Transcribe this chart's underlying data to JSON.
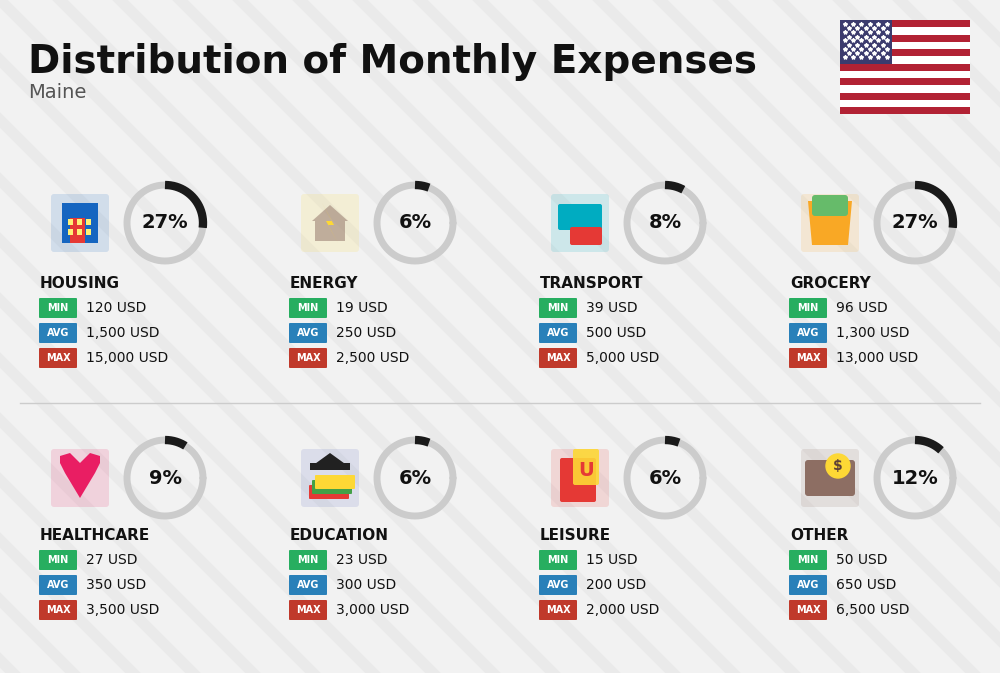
{
  "title": "Distribution of Monthly Expenses",
  "subtitle": "Maine",
  "background_color": "#f2f2f2",
  "categories": [
    {
      "name": "HOUSING",
      "percent": 27,
      "min_val": "120 USD",
      "avg_val": "1,500 USD",
      "max_val": "15,000 USD",
      "row": 0,
      "col": 0
    },
    {
      "name": "ENERGY",
      "percent": 6,
      "min_val": "19 USD",
      "avg_val": "250 USD",
      "max_val": "2,500 USD",
      "row": 0,
      "col": 1
    },
    {
      "name": "TRANSPORT",
      "percent": 8,
      "min_val": "39 USD",
      "avg_val": "500 USD",
      "max_val": "5,000 USD",
      "row": 0,
      "col": 2
    },
    {
      "name": "GROCERY",
      "percent": 27,
      "min_val": "96 USD",
      "avg_val": "1,300 USD",
      "max_val": "13,000 USD",
      "row": 0,
      "col": 3
    },
    {
      "name": "HEALTHCARE",
      "percent": 9,
      "min_val": "27 USD",
      "avg_val": "350 USD",
      "max_val": "3,500 USD",
      "row": 1,
      "col": 0
    },
    {
      "name": "EDUCATION",
      "percent": 6,
      "min_val": "23 USD",
      "avg_val": "300 USD",
      "max_val": "3,000 USD",
      "row": 1,
      "col": 1
    },
    {
      "name": "LEISURE",
      "percent": 6,
      "min_val": "15 USD",
      "avg_val": "200 USD",
      "max_val": "2,000 USD",
      "row": 1,
      "col": 2
    },
    {
      "name": "OTHER",
      "percent": 12,
      "min_val": "50 USD",
      "avg_val": "650 USD",
      "max_val": "6,500 USD",
      "row": 1,
      "col": 3
    }
  ],
  "color_min": "#27ae60",
  "color_avg": "#2980b9",
  "color_max": "#c0392b",
  "arc_color_filled": "#1a1a1a",
  "arc_color_empty": "#cccccc",
  "text_color": "#111111",
  "title_fontsize": 28,
  "subtitle_fontsize": 14,
  "category_fontsize": 11,
  "value_fontsize": 10,
  "badge_fontsize": 7,
  "percent_fontsize": 14
}
